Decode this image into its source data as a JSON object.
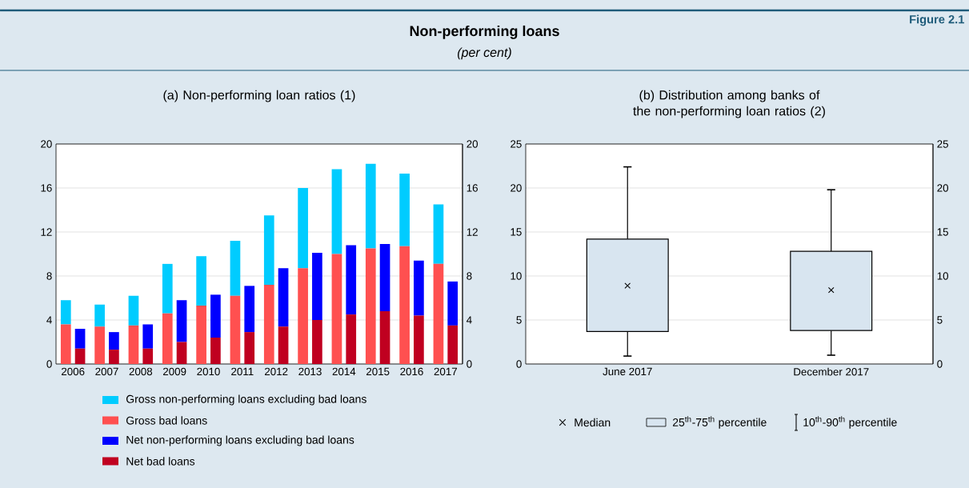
{
  "chart_data": [
    {
      "type": "other",
      "title": "Non-performing loans",
      "subtitle": "(per cent)",
      "annotations": [
        "Figure 2.1"
      ]
    },
    {
      "type": "bar",
      "title": "(a) Non-performing loan ratios (1)",
      "categories": [
        "2006",
        "2007",
        "2008",
        "2009",
        "2010",
        "2011",
        "2012",
        "2013",
        "2014",
        "2015",
        "2016",
        "2017"
      ],
      "series": [
        {
          "name": "Gross non-performing loans excluding bad loans",
          "color": "#00ccff",
          "base": [
            3.6,
            3.4,
            3.5,
            4.6,
            5.3,
            6.2,
            7.2,
            8.7,
            10.0,
            10.5,
            10.7,
            9.1
          ],
          "values": [
            2.2,
            2.0,
            2.7,
            4.5,
            4.5,
            5.0,
            6.3,
            7.3,
            7.7,
            7.7,
            6.6,
            5.4
          ]
        },
        {
          "name": "Gross bad loans",
          "color": "#ff5050",
          "values": [
            3.6,
            3.4,
            3.5,
            4.6,
            5.3,
            6.2,
            7.2,
            8.7,
            10.0,
            10.5,
            10.7,
            9.1
          ]
        },
        {
          "name": "Net non-performing loans excluding bad loans",
          "color": "#0000ff",
          "base": [
            1.4,
            1.3,
            1.4,
            2.0,
            2.4,
            2.9,
            3.4,
            4.0,
            4.5,
            4.8,
            4.4,
            3.5
          ],
          "values": [
            1.8,
            1.6,
            2.2,
            3.8,
            3.9,
            4.2,
            5.3,
            6.1,
            6.3,
            6.1,
            5.0,
            4.0
          ]
        },
        {
          "name": "Net bad loans",
          "color": "#c00020",
          "values": [
            1.4,
            1.3,
            1.4,
            2.0,
            2.4,
            2.9,
            3.4,
            4.0,
            4.5,
            4.8,
            4.4,
            3.5
          ]
        }
      ],
      "ylim": [
        0,
        20
      ],
      "yticks": [
        0,
        4,
        8,
        12,
        16,
        20
      ],
      "y2lim": [
        0,
        20
      ],
      "y2ticks": [
        0,
        4,
        8,
        12,
        16,
        20
      ],
      "grid": "y",
      "legend": "bottom"
    },
    {
      "type": "box",
      "title": "(b) Distribution among banks of the non-performing loan ratios (2)",
      "categories": [
        "June 2017",
        "December 2017"
      ],
      "boxes": [
        {
          "low": 0.9,
          "q1": 3.7,
          "median": 8.9,
          "q3": 14.2,
          "high": 22.4
        },
        {
          "low": 1.0,
          "q1": 3.8,
          "median": 8.4,
          "q3": 12.8,
          "high": 19.8
        }
      ],
      "color": "#d8e5f0",
      "marker": "cross",
      "ylim": [
        0,
        25
      ],
      "yticks": [
        0,
        5,
        10,
        15,
        20,
        25
      ],
      "y2lim": [
        0,
        25
      ],
      "y2ticks": [
        0,
        5,
        10,
        15,
        20,
        25
      ],
      "grid": "y",
      "annotations": [
        "Median",
        "25$^{th}$-75$^{th}$ percentile",
        "10$^{th}$-90$^{th}$ percentile"
      ]
    }
  ]
}
